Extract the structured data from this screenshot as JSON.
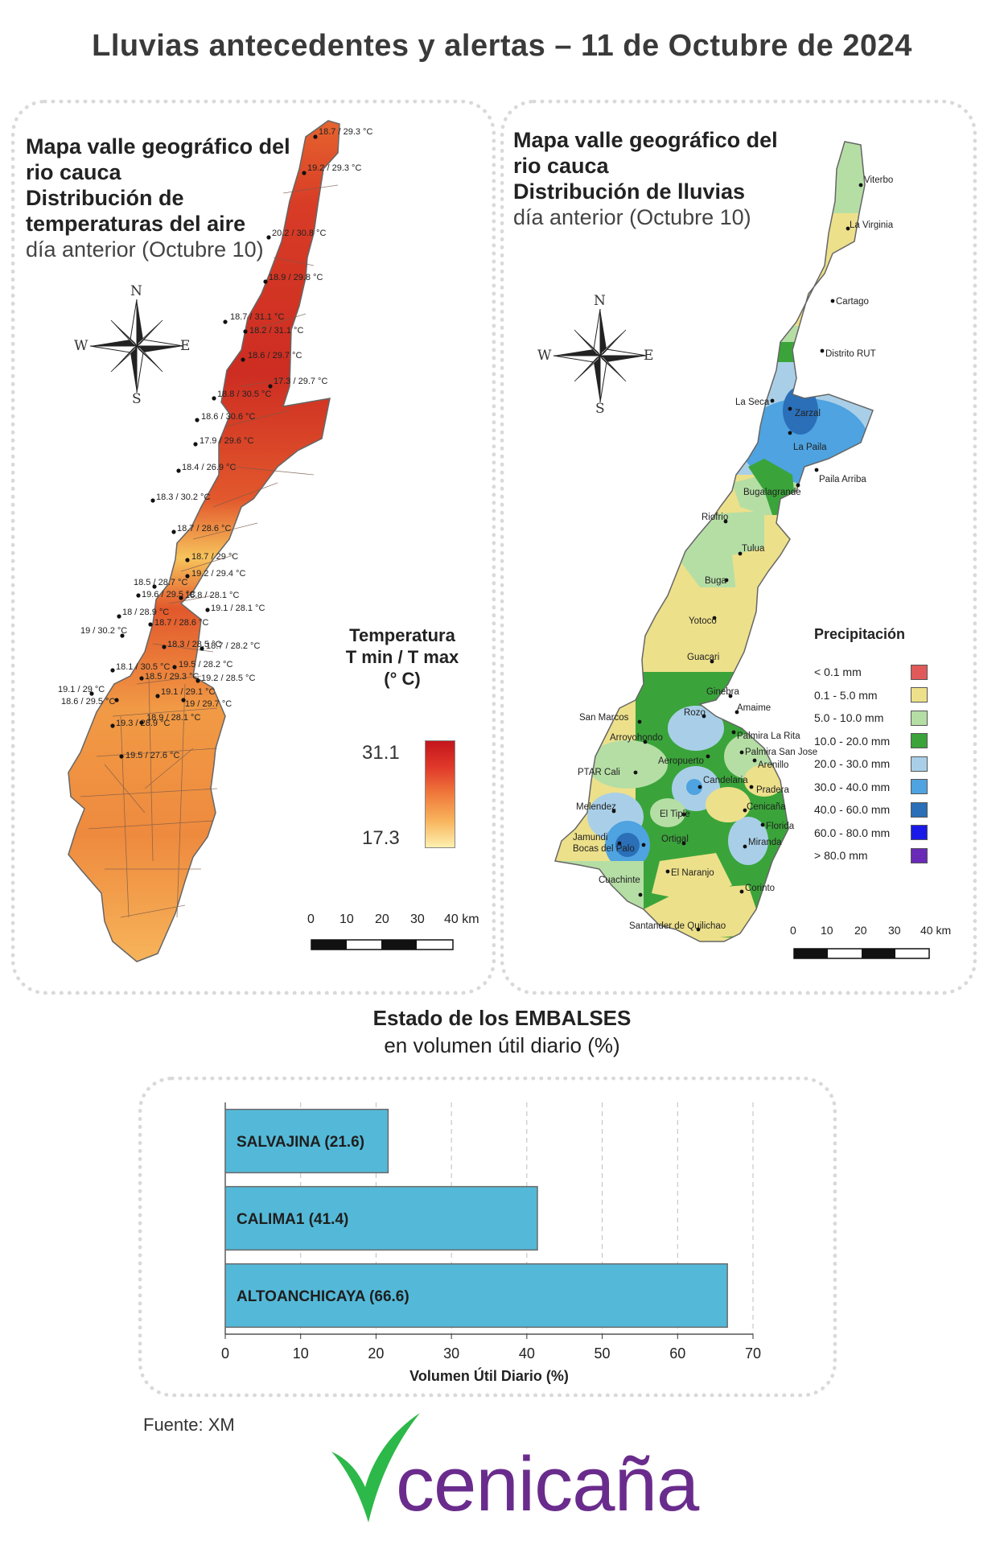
{
  "title": "Lluvias antecedentes y alertas – 11 de Octubre de 2024",
  "temperature_panel": {
    "title_line1": "Mapa valle geográfico del",
    "title_line2": "rio cauca",
    "title_line3": "Distribución de",
    "title_line4": "temperaturas del aire",
    "subtitle": "día anterior (Octubre 10)",
    "legend_title_1": "Temperatura",
    "legend_title_2": "T min / T max",
    "legend_title_3": "(° C)",
    "legend_max": "31.1",
    "legend_min": "17.3",
    "scale_labels": [
      "0",
      "10",
      "20",
      "30",
      "40 km"
    ],
    "stations": [
      "18.7 / 29.3 °C",
      "19.2 / 29.3 °C",
      "20.2 / 30.8 °C",
      "18.9 / 29.8 °C",
      "18.7 / 31.1 °C",
      "18.2 / 31.1 °C",
      "18.6 / 29.7 °C",
      "17.3 / 29.7 °C",
      "18.8 / 30.5 °C",
      "18.6 / 30.6 °C",
      "17.9 / 29.6 °C",
      "18.4 / 26.9 °C",
      "18.3 / 30.2 °C",
      "18.7 / 28.6 °C",
      "18.7 / 29 °C",
      "18.5 / 28.7 °C",
      "19.2 / 29.4 °C",
      "19.6 / 29.5 °C",
      "18.8 / 28.1 °C",
      "18 / 28.9 °C",
      "19.1 / 28.1 °C",
      "18.7 / 28.6 °C",
      "19 / 30.2 °C",
      "18.3 / 28.5 °C",
      "18.7 / 28.2 °C",
      "18.1 / 30.5 °C",
      "19.5 / 28.2 °C",
      "18.5 / 29.3 °C",
      "19.2 / 28.5 °C",
      "19.1 / 29 °C",
      "19.1 / 29.1 °C",
      "18.6 / 29.5 °C",
      "19 / 29.7 °C",
      "19.3 / 28.9 °C",
      "18.9 / 28.1 °C",
      "19.5 / 27.6 °C"
    ]
  },
  "rain_panel": {
    "title_line1": "Mapa valle geográfico del",
    "title_line2": "rio cauca",
    "title_line3": "Distribución de lluvias",
    "subtitle": "día anterior (Octubre 10)",
    "legend_title": "Precipitación",
    "legend": [
      {
        "label": "< 0.1 mm",
        "color": "#e05a5a"
      },
      {
        "label": "0.1 - 5.0 mm",
        "color": "#ede08a"
      },
      {
        "label": "5.0 - 10.0 mm",
        "color": "#b5dea5"
      },
      {
        "label": "10.0 - 20.0 mm",
        "color": "#3aa43a"
      },
      {
        "label": "20.0 - 30.0 mm",
        "color": "#a9cfe8"
      },
      {
        "label": "30.0 - 40.0 mm",
        "color": "#4ea3e0"
      },
      {
        "label": "40.0 - 60.0 mm",
        "color": "#2a6fb8"
      },
      {
        "label": "60.0 - 80.0 mm",
        "color": "#1a1ae8"
      },
      {
        "label": "> 80.0 mm",
        "color": "#6a2ab8"
      }
    ],
    "towns": [
      "Viterbo",
      "La Virginia",
      "Cartago",
      "Distrito RUT",
      "La Seca",
      "Zarzal",
      "La Paila",
      "Paila Arriba",
      "Bugalagrande",
      "Riofrio",
      "Tulua",
      "Buga",
      "Yotoco",
      "Guacari",
      "Ginebra",
      "Amaime",
      "San Marcos",
      "Rozo",
      "Palmira La Rita",
      "Arroyohondo",
      "Palmira San Jose",
      "Aeropuerto",
      "Arenillo",
      "PTAR Cali",
      "Candelaria",
      "Pradera",
      "Melendez",
      "El Tiple",
      "Cenicaña",
      "Florida",
      "Jamundi",
      "Bocas del Palo",
      "Ortigal",
      "Miranda",
      "El Naranjo",
      "Cuachinte",
      "Corinto",
      "Santander de Quilichao"
    ],
    "scale_labels": [
      "0",
      "10",
      "20",
      "30",
      "40 km"
    ]
  },
  "compass": {
    "n": "N",
    "s": "S",
    "e": "E",
    "w": "W"
  },
  "reservoirs": {
    "title": "Estado de los EMBALSES",
    "subtitle": "en volumen útil diario (%)",
    "bar_color": "#54b9d8"
  },
  "chart_data": {
    "type": "bar",
    "orientation": "horizontal",
    "categories": [
      "SALVAJINA (21.6)",
      "CALIMA1 (41.4)",
      "ALTOANCHICAYA (66.6)"
    ],
    "values": [
      21.6,
      41.4,
      66.6
    ],
    "xlabel": "Volumen Útil Diario (%)",
    "xlim": [
      0,
      70
    ],
    "xticks": [
      "0",
      "10",
      "20",
      "30",
      "40",
      "50",
      "60",
      "70"
    ],
    "grid": true
  },
  "source": "Fuente: XM",
  "logo": {
    "text": "cenicaña",
    "color": "#6a2c8c",
    "mark_color": "#2db84a"
  }
}
